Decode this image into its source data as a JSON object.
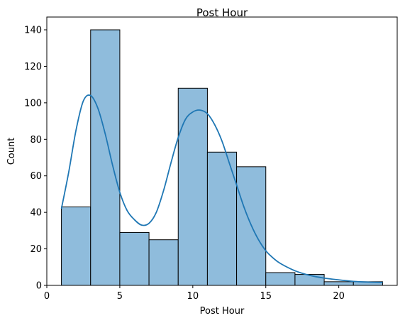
{
  "chart_data": {
    "type": "bar",
    "title": "Post Hour",
    "xlabel": "Post Hour",
    "ylabel": "Count",
    "xlim": [
      0,
      24
    ],
    "ylim": [
      0,
      147
    ],
    "xticks": [
      0,
      5,
      10,
      15,
      20
    ],
    "yticks": [
      0,
      20,
      40,
      60,
      80,
      100,
      120,
      140
    ],
    "bin_edges": [
      1,
      3,
      5,
      7,
      9,
      11,
      13,
      15,
      17,
      19,
      21,
      23
    ],
    "values": [
      43,
      140,
      29,
      25,
      108,
      73,
      65,
      7,
      6,
      2,
      2
    ],
    "kde": {
      "name": "",
      "x": [
        1,
        1.5,
        2,
        2.5,
        3,
        3.5,
        4,
        4.5,
        5,
        5.5,
        6,
        6.5,
        7,
        7.5,
        8,
        8.5,
        9,
        9.5,
        10,
        10.5,
        11,
        11.5,
        12,
        12.5,
        13,
        13.5,
        14,
        14.5,
        15,
        15.5,
        16,
        17,
        18,
        19,
        20,
        21,
        22,
        23
      ],
      "y": [
        42,
        62,
        85,
        101,
        104,
        97,
        83,
        66,
        51,
        41,
        36,
        33,
        34,
        40,
        52,
        67,
        81,
        91,
        95,
        96,
        94,
        88,
        79,
        67,
        55,
        43,
        33,
        25,
        19,
        15,
        12,
        8,
        5.5,
        4,
        3,
        2.2,
        1.8,
        1.6
      ]
    },
    "bar_color": "#8fbcdc",
    "bar_edge_color": "#000000",
    "kde_color": "#1f77b4",
    "grid": false
  }
}
